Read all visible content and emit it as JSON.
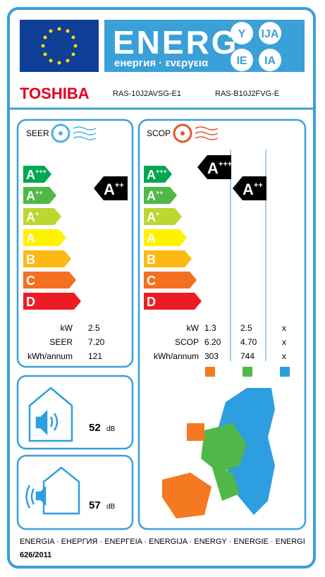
{
  "header": {
    "word": "ENERG",
    "subword": "енергия · ενεργεια",
    "suffixes": [
      "Y",
      "IJA",
      "IE",
      "IA"
    ]
  },
  "brand": "TOSHIBA",
  "models": [
    "RAS-10J2AVSG-E1",
    "RAS-B10J2FVG-E"
  ],
  "cooling": {
    "label": "SEER",
    "classes": [
      {
        "letter": "A",
        "plus": "+++"
      },
      {
        "letter": "A",
        "plus": "++"
      },
      {
        "letter": "A",
        "plus": "+"
      },
      {
        "letter": "A",
        "plus": ""
      },
      {
        "letter": "B",
        "plus": ""
      },
      {
        "letter": "C",
        "plus": ""
      },
      {
        "letter": "D",
        "plus": ""
      }
    ],
    "rating": {
      "letter": "A",
      "plus": "++"
    },
    "rows": [
      {
        "label": "kW",
        "value": "2.5"
      },
      {
        "label": "SEER",
        "value": "7.20"
      },
      {
        "label": "kWh/annum",
        "value": "121"
      }
    ]
  },
  "heating": {
    "label": "SCOP",
    "classes": [
      {
        "letter": "A",
        "plus": "+++"
      },
      {
        "letter": "A",
        "plus": "++"
      },
      {
        "letter": "A",
        "plus": "+"
      },
      {
        "letter": "A",
        "plus": ""
      },
      {
        "letter": "B",
        "plus": ""
      },
      {
        "letter": "C",
        "plus": ""
      },
      {
        "letter": "D",
        "plus": ""
      }
    ],
    "ratings": [
      {
        "letter": "A",
        "plus": "+++"
      },
      {
        "letter": "A",
        "plus": "++"
      }
    ],
    "rows": [
      {
        "label": "kW",
        "values": [
          "1.3",
          "2.5",
          "x"
        ]
      },
      {
        "label": "SCOP",
        "values": [
          "6.20",
          "4.70",
          "x"
        ]
      },
      {
        "label": "kWh/annum",
        "values": [
          "303",
          "744",
          "x"
        ]
      }
    ]
  },
  "noise": [
    {
      "value": "52",
      "unit": "dB"
    },
    {
      "value": "57",
      "unit": "dB"
    }
  ],
  "footer": {
    "languages": "ENERGIA · ЕНЕРГИЯ · ΕΝΕΡΓΕΙΑ · ENERGIJA · ENERGY · ENERGIE · ENERGI",
    "regulation": "626/2011"
  }
}
